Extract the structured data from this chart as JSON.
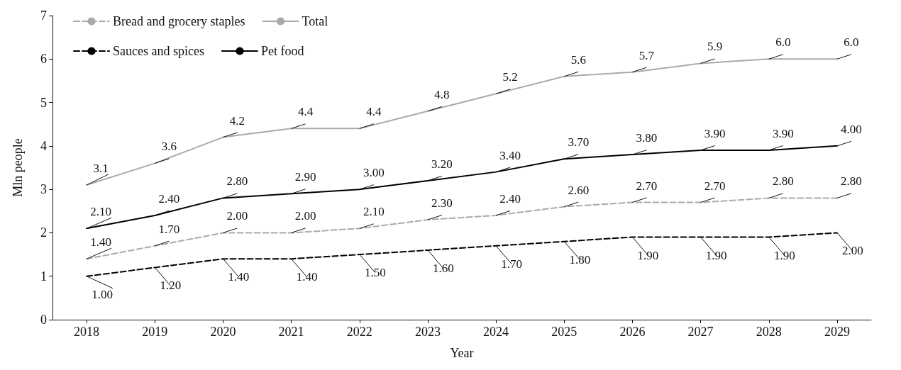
{
  "chart_data": {
    "type": "line",
    "xlabel": "Year",
    "ylabel": "Mln people",
    "categories": [
      "2018",
      "2019",
      "2020",
      "2021",
      "2022",
      "2023",
      "2024",
      "2025",
      "2026",
      "2027",
      "2028",
      "2029"
    ],
    "ylim": [
      0,
      7
    ],
    "yticks": [
      0,
      1,
      2,
      3,
      4,
      5,
      6,
      7
    ],
    "grid": false,
    "legend": "top left",
    "marker": "none",
    "series": [
      {
        "name": "Bread and grocery staples",
        "color": "#aaaaaa",
        "line_style": "dashed",
        "values": [
          1.4,
          1.7,
          2.0,
          2.0,
          2.1,
          2.3,
          2.4,
          2.6,
          2.7,
          2.7,
          2.8,
          2.8
        ],
        "value_labels": [
          "1.40",
          "1.70",
          "2.00",
          "2.00",
          "2.10",
          "2.30",
          "2.40",
          "2.60",
          "2.70",
          "2.70",
          "2.80",
          "2.80"
        ]
      },
      {
        "name": "Total",
        "color": "#aaaaaa",
        "line_style": "solid",
        "values": [
          3.1,
          3.6,
          4.2,
          4.4,
          4.4,
          4.8,
          5.2,
          5.6,
          5.7,
          5.9,
          6.0,
          6.0
        ],
        "value_labels": [
          "3.1",
          "3.6",
          "4.2",
          "4.4",
          "4.4",
          "4.8",
          "5.2",
          "5.6",
          "5.7",
          "5.9",
          "6.0",
          "6.0"
        ]
      },
      {
        "name": "Sauces and spices",
        "color": "#000000",
        "line_style": "dashed",
        "values": [
          1.0,
          1.2,
          1.4,
          1.4,
          1.5,
          1.6,
          1.7,
          1.8,
          1.9,
          1.9,
          1.9,
          2.0
        ],
        "value_labels": [
          "1.00",
          "1.20",
          "1.40",
          "1.40",
          "1.50",
          "1.60",
          "1.70",
          "1.80",
          "1.90",
          "1.90",
          "1.90",
          "2.00"
        ]
      },
      {
        "name": "Pet food",
        "color": "#000000",
        "line_style": "solid",
        "values": [
          2.1,
          2.4,
          2.8,
          2.9,
          3.0,
          3.2,
          3.4,
          3.7,
          3.8,
          3.9,
          3.9,
          4.0
        ],
        "value_labels": [
          "2.10",
          "2.40",
          "2.80",
          "2.90",
          "3.00",
          "3.20",
          "3.40",
          "3.70",
          "3.80",
          "3.90",
          "3.90",
          "4.00"
        ]
      }
    ]
  }
}
